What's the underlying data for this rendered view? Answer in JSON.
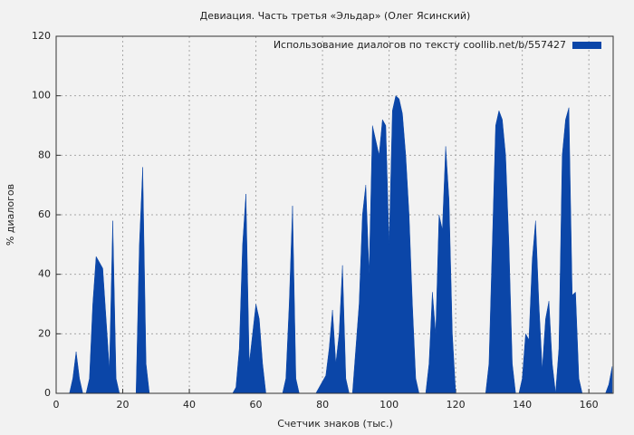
{
  "chart_data": {
    "type": "area",
    "title": "Девиация. Часть третья «Эльдар» (Олег Ясинский)",
    "x_label": "Счетчик знаков (тыс.)",
    "y_label": "% диалогов",
    "x": [
      0,
      1,
      2,
      3,
      4,
      5,
      6,
      7,
      8,
      9,
      10,
      11,
      12,
      13,
      14,
      15,
      16,
      17,
      18,
      19,
      20,
      21,
      22,
      23,
      24,
      25,
      26,
      27,
      28,
      29,
      30,
      31,
      32,
      33,
      34,
      35,
      36,
      37,
      38,
      39,
      40,
      41,
      42,
      43,
      44,
      45,
      46,
      47,
      48,
      49,
      50,
      51,
      52,
      53,
      54,
      55,
      56,
      57,
      58,
      59,
      60,
      61,
      62,
      63,
      64,
      65,
      66,
      67,
      68,
      69,
      70,
      71,
      72,
      73,
      74,
      75,
      76,
      77,
      78,
      79,
      80,
      81,
      82,
      83,
      84,
      85,
      86,
      87,
      88,
      89,
      90,
      91,
      92,
      93,
      94,
      95,
      96,
      97,
      98,
      99,
      100,
      101,
      102,
      103,
      104,
      105,
      106,
      107,
      108,
      109,
      110,
      111,
      112,
      113,
      114,
      115,
      116,
      117,
      118,
      119,
      120,
      121,
      122,
      123,
      124,
      125,
      126,
      127,
      128,
      129,
      130,
      131,
      132,
      133,
      134,
      135,
      136,
      137,
      138,
      139,
      140,
      141,
      142,
      143,
      144,
      145,
      146,
      147,
      148,
      149,
      150,
      151,
      152,
      153,
      154,
      155,
      156,
      157,
      158,
      159,
      160,
      161,
      162,
      163,
      164,
      165,
      166,
      167
    ],
    "series": [
      {
        "name": "Использование диалогов по тексту  coollib.net/b/557427",
        "color": "#0b46a8",
        "values": [
          0,
          0,
          0,
          0,
          0,
          5,
          14,
          5,
          0,
          0,
          5,
          30,
          46,
          44,
          42,
          25,
          8,
          58,
          5,
          0,
          0,
          0,
          0,
          0,
          0,
          50,
          76,
          10,
          0,
          0,
          0,
          0,
          0,
          0,
          0,
          0,
          0,
          0,
          0,
          0,
          0,
          0,
          0,
          0,
          0,
          0,
          0,
          0,
          0,
          0,
          0,
          0,
          0,
          0,
          2,
          15,
          50,
          67,
          10,
          20,
          30,
          25,
          10,
          0,
          0,
          0,
          0,
          0,
          0,
          5,
          30,
          63,
          5,
          0,
          0,
          0,
          0,
          0,
          0,
          2,
          4,
          6,
          15,
          28,
          10,
          20,
          43,
          5,
          0,
          0,
          15,
          30,
          60,
          70,
          40,
          90,
          85,
          80,
          92,
          90,
          50,
          95,
          100,
          99,
          94,
          80,
          60,
          30,
          5,
          0,
          0,
          0,
          10,
          34,
          20,
          60,
          55,
          83,
          65,
          20,
          0,
          0,
          0,
          0,
          0,
          0,
          0,
          0,
          0,
          0,
          10,
          50,
          90,
          95,
          92,
          80,
          50,
          10,
          0,
          0,
          5,
          20,
          18,
          45,
          58,
          30,
          8,
          25,
          31,
          10,
          0,
          15,
          80,
          92,
          96,
          33,
          34,
          5,
          0,
          0,
          0,
          0,
          0,
          0,
          0,
          0,
          3,
          9
        ]
      }
    ],
    "xlim": [
      0,
      167.3
    ],
    "ylim": [
      0,
      120
    ],
    "xticks": [
      0,
      20,
      40,
      60,
      80,
      100,
      120,
      140,
      160
    ],
    "yticks": [
      0,
      20,
      40,
      60,
      80,
      100,
      120
    ],
    "grid": true,
    "legend": "top-right"
  }
}
